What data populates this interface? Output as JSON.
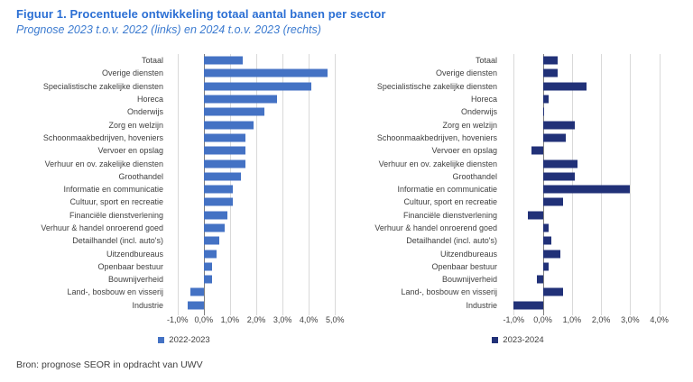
{
  "header": {
    "title": "Figuur 1. Procentuele ontwikkeling totaal aantal banen per sector",
    "subtitle": "Prognose 2023 t.o.v. 2022 (links) en 2024 t.o.v. 2023 (rechts)"
  },
  "source": "Bron: prognose SEOR in opdracht van UWV",
  "colors": {
    "title_blue": "#2B6FD4",
    "subtitle_blue": "#3C7BD0",
    "left_bar": "#4472C4",
    "right_bar": "#213178",
    "gridline": "#D9D9D9",
    "zero_line": "#7F7F7F",
    "text": "#404040"
  },
  "chart_data": [
    {
      "type": "bar",
      "orientation": "horizontal",
      "legend": "2022-2023",
      "bar_color": "#4472C4",
      "axis": {
        "min": -1.3,
        "max": 5.3
      },
      "grid": true,
      "legend_position": "bottom",
      "ticks": [
        {
          "v": -1,
          "label": "-1,0%"
        },
        {
          "v": 0,
          "label": "0,0%"
        },
        {
          "v": 1,
          "label": "1,0%"
        },
        {
          "v": 2,
          "label": "2,0%"
        },
        {
          "v": 3,
          "label": "3,0%"
        },
        {
          "v": 4,
          "label": "4,0%"
        },
        {
          "v": 5,
          "label": "5,0%"
        }
      ],
      "categories": [
        "Totaal",
        "Overige diensten",
        "Specialistische zakelijke diensten",
        "Horeca",
        "Onderwijs",
        "Zorg en welzijn",
        "Schoonmaakbedrijven, hoveniers",
        "Vervoer en opslag",
        "Verhuur en ov. zakelijke diensten",
        "Groothandel",
        "Informatie en communicatie",
        "Cultuur, sport en recreatie",
        "Financiële dienstverlening",
        "Verhuur & handel onroerend goed",
        "Detailhandel (incl. auto's)",
        "Uitzendbureaus",
        "Openbaar bestuur",
        "Bouwnijverheid",
        "Land-, bosbouw en visserij",
        "Industrie"
      ],
      "values": [
        1.5,
        4.7,
        4.1,
        2.8,
        2.3,
        1.9,
        1.6,
        1.6,
        1.6,
        1.4,
        1.1,
        1.1,
        0.9,
        0.8,
        0.6,
        0.5,
        0.3,
        0.3,
        -0.5,
        -0.6
      ]
    },
    {
      "type": "bar",
      "orientation": "horizontal",
      "legend": "2023-2024",
      "bar_color": "#213178",
      "axis": {
        "min": -1.35,
        "max": 4.6
      },
      "grid": true,
      "legend_position": "bottom",
      "ticks": [
        {
          "v": -1,
          "label": "-1,0%"
        },
        {
          "v": 0,
          "label": "0,0%"
        },
        {
          "v": 1,
          "label": "1,0%"
        },
        {
          "v": 2,
          "label": "2,0%"
        },
        {
          "v": 3,
          "label": "3,0%"
        },
        {
          "v": 4,
          "label": "4,0%"
        }
      ],
      "categories": [
        "Totaal",
        "Overige diensten",
        "Specialistische zakelijke diensten",
        "Horeca",
        "Onderwijs",
        "Zorg en welzijn",
        "Schoonmaakbedrijven, hoveniers",
        "Vervoer en opslag",
        "Verhuur en ov. zakelijke diensten",
        "Groothandel",
        "Informatie en communicatie",
        "Cultuur, sport en recreatie",
        "Financiële dienstverlening",
        "Verhuur & handel onroerend goed",
        "Detailhandel (incl. auto's)",
        "Uitzendbureaus",
        "Openbaar bestuur",
        "Bouwnijverheid",
        "Land-, bosbouw en visserij",
        "Industrie"
      ],
      "values": [
        0.5,
        0.5,
        1.5,
        0.2,
        0.0,
        1.1,
        0.8,
        -0.4,
        1.2,
        1.1,
        3.0,
        0.7,
        -0.5,
        0.2,
        0.3,
        0.6,
        0.2,
        -0.2,
        0.7,
        -1.0
      ]
    }
  ]
}
